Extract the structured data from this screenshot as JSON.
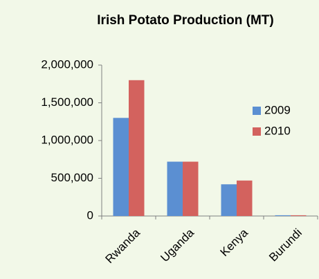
{
  "chart_data": {
    "type": "bar",
    "title": "Irish Potato Production (MT)",
    "categories": [
      "Rwanda",
      "Uganda",
      "Kenya",
      "Burundi"
    ],
    "series": [
      {
        "name": "2009",
        "color": "#5b8fd2",
        "values": [
          1300000,
          720000,
          420000,
          10000
        ]
      },
      {
        "name": "2010",
        "color": "#d3625e",
        "values": [
          1800000,
          720000,
          470000,
          10000
        ]
      }
    ],
    "ylim": [
      0,
      2000000
    ],
    "yticks": [
      0,
      {
        "value": 500000,
        "label": "500,000"
      },
      {
        "value": 1000000,
        "label": "1,000,000"
      },
      {
        "value": 1500000,
        "label": "1,500,000"
      },
      {
        "value": 2000000,
        "label": "2,000,000"
      }
    ],
    "grid": false,
    "legend": "right"
  }
}
